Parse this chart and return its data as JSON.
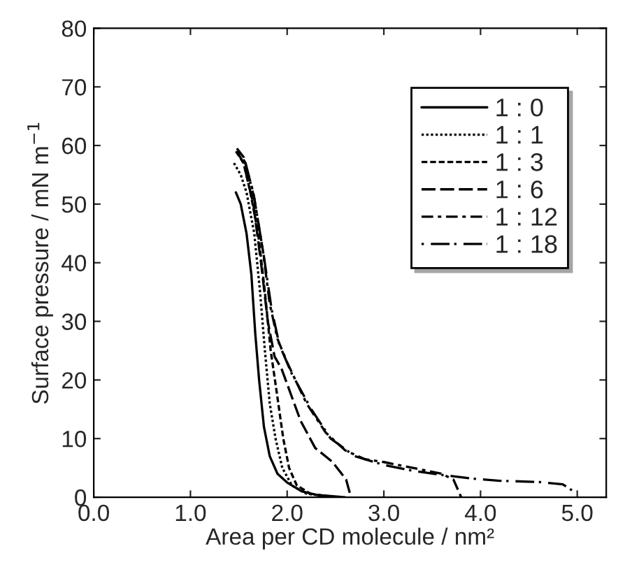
{
  "chart_data": {
    "type": "line",
    "xlabel": "Area per CD molecule / nm²",
    "ylabel": "Surface pressure / mN m$^{−1}$",
    "xlim": [
      0,
      5.3
    ],
    "ylim": [
      0,
      80
    ],
    "xticks": [
      {
        "value": 0,
        "label": "0.0"
      },
      {
        "value": 1,
        "label": "1.0"
      },
      {
        "value": 2,
        "label": "2.0"
      },
      {
        "value": 3,
        "label": "3.0"
      },
      {
        "value": 4,
        "label": "4.0"
      },
      {
        "value": 5,
        "label": "5.0"
      }
    ],
    "yticks": [
      0,
      10,
      20,
      30,
      40,
      50,
      60,
      70,
      80
    ],
    "grid": false,
    "legend": "top right",
    "marker": "none",
    "series": [
      {
        "name": "1 : 0",
        "color": "#000000",
        "line_style": "solid",
        "x": [
          1.47,
          1.52,
          1.58,
          1.63,
          1.67,
          1.71,
          1.76,
          1.82,
          1.9,
          2.0,
          2.15,
          2.3,
          2.6
        ],
        "values": [
          52,
          50,
          45,
          38,
          28,
          20,
          12,
          7,
          4,
          2.5,
          1,
          0.4,
          0
        ]
      },
      {
        "name": "1 : 1",
        "color": "#000000",
        "line_style": "dotted",
        "x": [
          1.45,
          1.52,
          1.58,
          1.66,
          1.72,
          1.77,
          1.82,
          1.88,
          1.95,
          2.05,
          2.2,
          2.5
        ],
        "values": [
          57,
          55,
          52,
          45,
          35,
          25,
          16,
          10,
          5,
          2,
          0.6,
          0
        ]
      },
      {
        "name": "1 : 3",
        "color": "#000000",
        "line_style": "dashed",
        "x": [
          1.47,
          1.55,
          1.62,
          1.7,
          1.77,
          1.83,
          1.9,
          1.96,
          2.02,
          2.1,
          2.25,
          2.5
        ],
        "values": [
          59,
          57,
          52,
          45,
          35,
          25,
          17,
          10,
          5,
          2,
          0.5,
          0
        ]
      },
      {
        "name": "1 : 6",
        "color": "#000000",
        "line_style": "longdash",
        "x": [
          1.48,
          1.55,
          1.65,
          1.73,
          1.8,
          1.87,
          1.94,
          2.14,
          2.29,
          2.47,
          2.61,
          2.66
        ],
        "values": [
          59,
          57,
          50,
          40,
          30,
          24,
          22,
          13,
          8.4,
          6,
          3,
          0
        ]
      },
      {
        "name": "1 : 12",
        "color": "#000000",
        "line_style": "dashdot",
        "x": [
          1.48,
          1.55,
          1.65,
          1.75,
          1.82,
          1.9,
          2.0,
          2.2,
          2.4,
          2.6,
          2.8,
          3.0,
          3.3,
          3.6,
          3.72,
          3.8
        ],
        "values": [
          59.5,
          58,
          52,
          42,
          33,
          27,
          23,
          16,
          11,
          8,
          6.5,
          6,
          5,
          4,
          3,
          0
        ]
      },
      {
        "name": "1 : 18",
        "color": "#000000",
        "line_style": "dotlongdash",
        "x": [
          1.5,
          1.57,
          1.66,
          1.76,
          1.84,
          1.92,
          2.05,
          2.25,
          2.45,
          2.7,
          3.0,
          3.3,
          3.6,
          3.9,
          4.2,
          4.6,
          4.85,
          5.0
        ],
        "values": [
          59,
          57,
          51,
          41,
          32,
          26,
          21,
          15,
          10,
          7,
          5.5,
          4.5,
          3.8,
          3.2,
          2.8,
          2.6,
          2.2,
          0.6
        ]
      }
    ]
  }
}
